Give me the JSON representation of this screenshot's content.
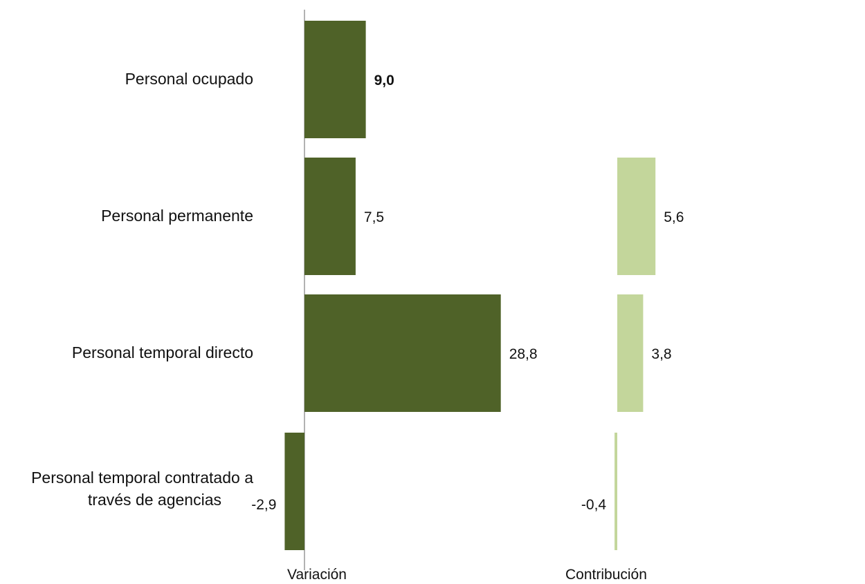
{
  "chart_data": {
    "type": "bar",
    "orientation": "horizontal",
    "categories": [
      "Personal ocupado",
      "Personal permanente",
      "Personal temporal directo",
      "Personal temporal contratado a través de agencias"
    ],
    "category_lines": [
      [
        "Personal ocupado"
      ],
      [
        "Personal permanente"
      ],
      [
        "Personal temporal directo"
      ],
      [
        "Personal temporal contratado a",
        "través de agencias"
      ]
    ],
    "panels": [
      {
        "name": "Variación",
        "color": "#4f6228",
        "values": [
          9.0,
          7.5,
          28.8,
          -2.9
        ],
        "labels": [
          "9,0",
          "7,5",
          "28,8",
          "-2,9"
        ],
        "bold_label_index": [
          0
        ],
        "axis_line": true
      },
      {
        "name": "Contribución",
        "color": "#c3d69b",
        "values": [
          null,
          5.6,
          3.8,
          -0.4
        ],
        "labels": [
          "",
          "5,6",
          "3,8",
          "-0,4"
        ],
        "axis_line": false
      }
    ],
    "grid": false,
    "legend": "none"
  }
}
